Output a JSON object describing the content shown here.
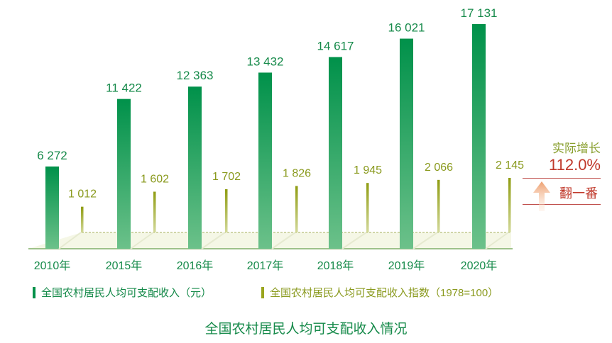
{
  "chart_data": {
    "type": "bar",
    "title": "全国农村居民人均可支配收入情况",
    "categories": [
      "2010年",
      "2015年",
      "2016年",
      "2017年",
      "2018年",
      "2019年",
      "2020年"
    ],
    "series": [
      {
        "name": "全国农村居民人均可支配收入（元）",
        "values": [
          6272,
          11422,
          12363,
          13432,
          14617,
          16021,
          17131
        ],
        "labels": [
          "6 272",
          "11 422",
          "12 363",
          "13 432",
          "14 617",
          "16 021",
          "17 131"
        ],
        "color": "#00914a"
      },
      {
        "name": "全国农村居民人均可支配收入指数（1978=100）",
        "values": [
          1012,
          1602,
          1702,
          1826,
          1945,
          2066,
          2145
        ],
        "labels": [
          "1 012",
          "1 602",
          "1 702",
          "1 826",
          "1 945",
          "2 066",
          "2 145"
        ],
        "color": "#9aa51e"
      }
    ],
    "legend": "bottom",
    "grid": false
  },
  "annotation": {
    "label": "实际增长",
    "value": "112.0%",
    "note": "翻一番",
    "label_color": "#8aa030",
    "value_color": "#c0392b"
  }
}
